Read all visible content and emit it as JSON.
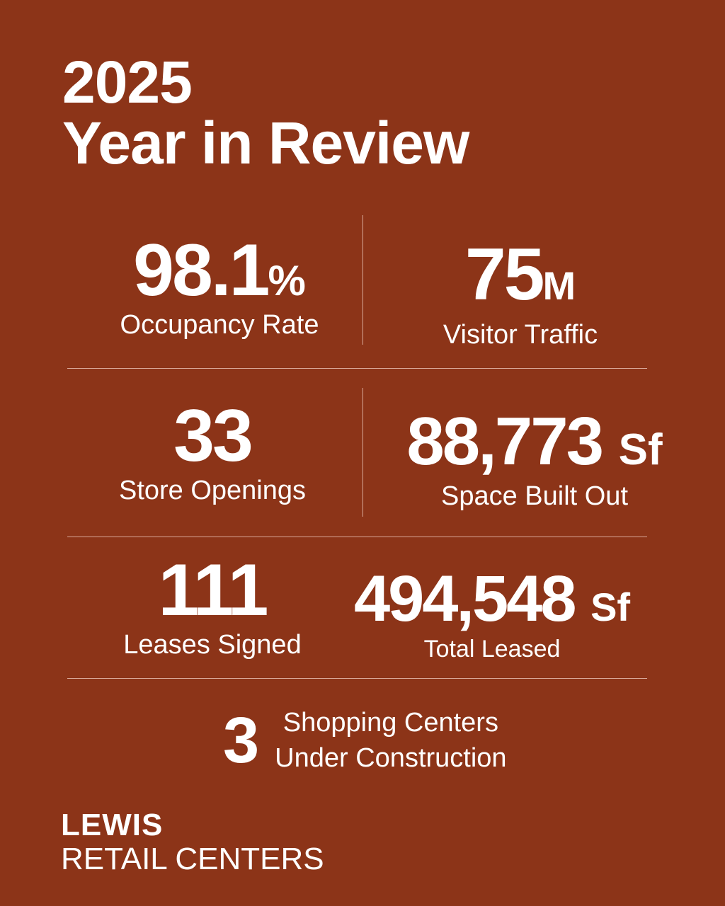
{
  "title": {
    "line1": "2025",
    "line2": "Year in Review"
  },
  "stats": {
    "occupancy": {
      "value": "98.1",
      "unit": "%",
      "label": "Occupancy Rate"
    },
    "visitor": {
      "value": "75",
      "unit": "M",
      "label": "Visitor Traffic"
    },
    "stores": {
      "value": "33",
      "unit": "",
      "label": "Store Openings"
    },
    "space": {
      "value": "88,773",
      "unit": "Sf",
      "label": "Space Built Out"
    },
    "leases": {
      "value": "111",
      "unit": "",
      "label": "Leases Signed"
    },
    "total": {
      "value": "494,548",
      "unit": "Sf",
      "label": "Total Leased"
    },
    "construction": {
      "value": "3",
      "line1": "Shopping Centers",
      "line2": "Under Construction"
    }
  },
  "logo": {
    "line1": "LEWIS",
    "line2": "RETAIL CENTERS"
  },
  "colors": {
    "background": "#8c3418",
    "text": "#ffffff",
    "divider": "#d9a898"
  }
}
